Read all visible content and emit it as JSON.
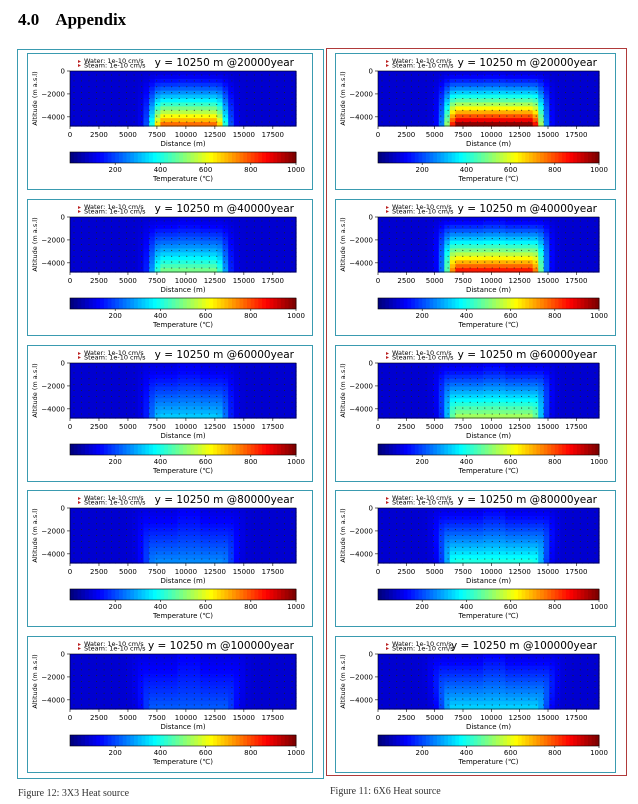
{
  "section": {
    "number": "4.0",
    "title": "Appendix"
  },
  "captions": {
    "left": "Figure 12: 3X3 Heat source",
    "right": "Figure 11: 6X6 Heat source"
  },
  "legend": {
    "water": "Water: 1e-10 cm/s",
    "steam": "Steam: 1e-10 cm/s"
  },
  "axes": {
    "ylabel": "Altitude (m a.s.l)",
    "xlabel": "Distance (m)",
    "yticks": [
      "0",
      "−2000",
      "−4000"
    ],
    "xticks": [
      "0",
      "2500",
      "5000",
      "7500",
      "10000",
      "12500",
      "15000",
      "17500"
    ],
    "colorbar_label": "Temperature (℃)",
    "colorbar_ticks": [
      "200",
      "400",
      "600",
      "800",
      "1000"
    ]
  },
  "panels": {
    "left": [
      {
        "title": "y = 10250 m @20000year",
        "peak": 0.72,
        "half_width": 2200,
        "spread": 0.1
      },
      {
        "title": "y = 10250 m @40000year",
        "peak": 0.42,
        "half_width": 2200,
        "spread": 0.18
      },
      {
        "title": "y = 10250 m @60000year",
        "peak": 0.24,
        "half_width": 2400,
        "spread": 0.26
      },
      {
        "title": "y = 10250 m @80000year",
        "peak": 0.17,
        "half_width": 2800,
        "spread": 0.32
      },
      {
        "title": "y = 10250 m @100000year",
        "peak": 0.12,
        "half_width": 3000,
        "spread": 0.36
      }
    ],
    "right": [
      {
        "title": "y = 10250 m @20000year",
        "peak": 0.95,
        "half_width": 3200,
        "spread": 0.12
      },
      {
        "title": "y = 10250 m @40000year",
        "peak": 0.8,
        "half_width": 3200,
        "spread": 0.22
      },
      {
        "title": "y = 10250 m @60000year",
        "peak": 0.46,
        "half_width": 3200,
        "spread": 0.3
      },
      {
        "title": "y = 10250 m @80000year",
        "peak": 0.32,
        "half_width": 3400,
        "spread": 0.34
      },
      {
        "title": "y = 10250 m @100000year",
        "peak": 0.24,
        "half_width": 3600,
        "spread": 0.38
      }
    ]
  },
  "domain": {
    "xmin": 0,
    "xmax": 19500,
    "ymin": -4800,
    "ymax": 0,
    "source_center": 10250
  },
  "colorbar_range": [
    0,
    1000
  ]
}
